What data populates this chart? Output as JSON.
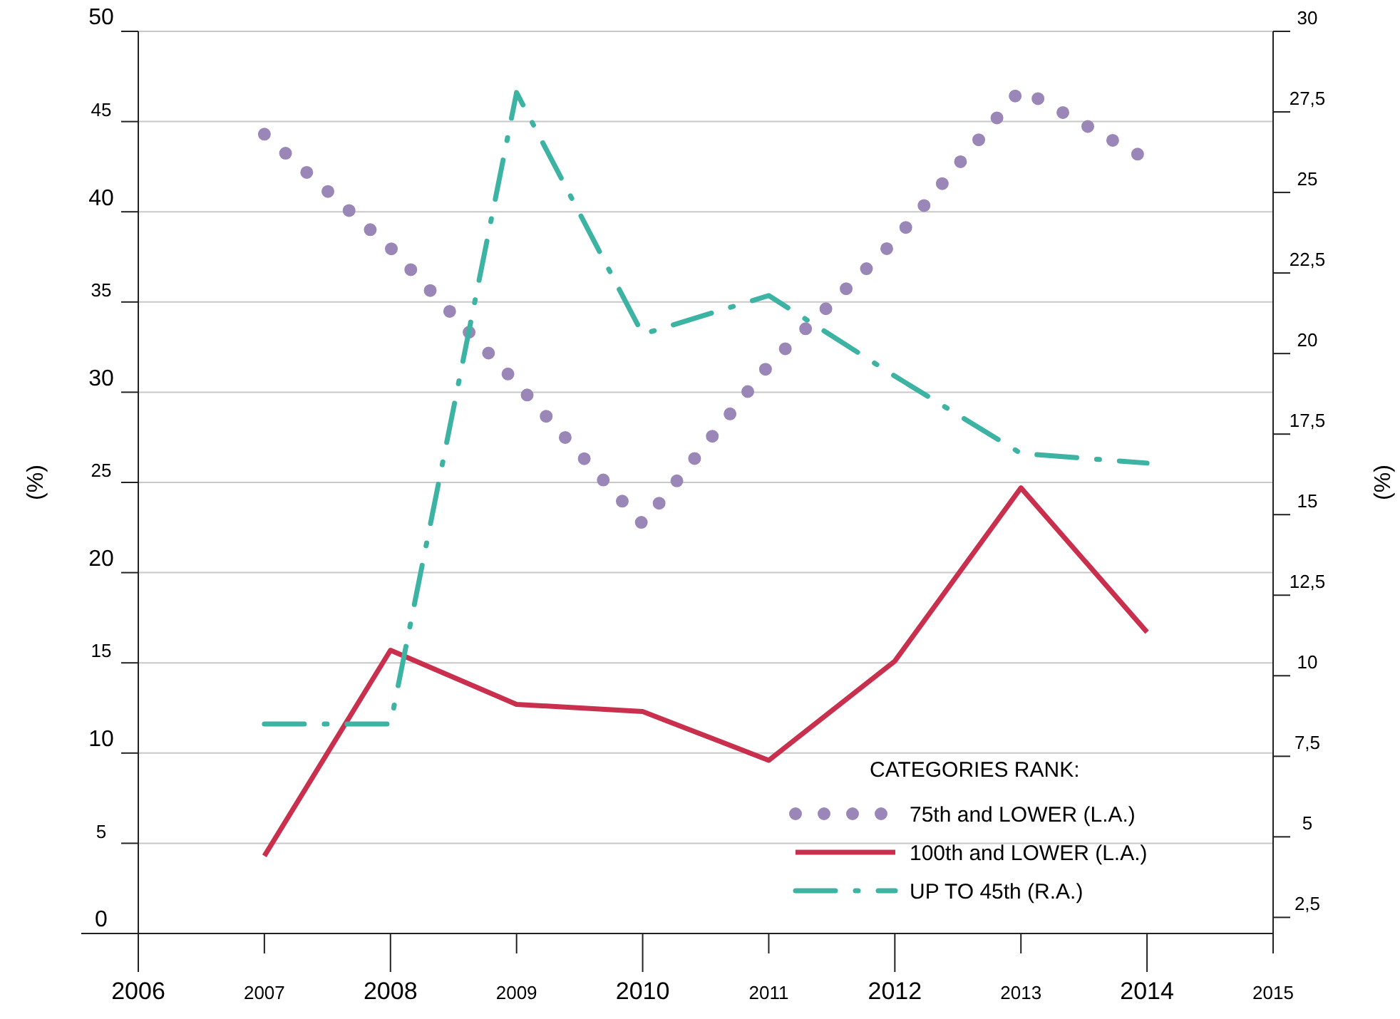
{
  "chart_data": {
    "type": "line",
    "x": [
      2007,
      2008,
      2009,
      2010,
      2011,
      2012,
      2013,
      2014
    ],
    "xlim": [
      2006,
      2015
    ],
    "xticks": [
      2006,
      2007,
      2008,
      2009,
      2010,
      2011,
      2012,
      2013,
      2014,
      2015
    ],
    "ylim": [
      0,
      50
    ],
    "yticks": [
      0,
      5,
      10,
      15,
      20,
      25,
      30,
      35,
      40,
      45,
      50
    ],
    "y2lim": [
      2,
      30
    ],
    "y2ticks": [
      {
        "value": 2.5,
        "label": "2,5"
      },
      5,
      {
        "value": 7.5,
        "label": "7,5"
      },
      10,
      {
        "value": 12.5,
        "label": "12,5"
      },
      15,
      {
        "value": 17.5,
        "label": "17,5"
      },
      20,
      {
        "value": 22.5,
        "label": "22,5"
      },
      25,
      {
        "value": 27.5,
        "label": "27,5"
      },
      30
    ],
    "ylabel": "(%)",
    "y2label": "(%)",
    "legend_title": "CATEGORIES RANK:",
    "legend": "bottom right",
    "grid": "y",
    "marker": "none",
    "series": [
      {
        "name": "75th and LOWER  (L.A.)",
        "color": "#9b86b8",
        "line_style": "dotted",
        "values": [
          44.3,
          38,
          30.5,
          22.7,
          31.5,
          38.4,
          46.8,
          42.9
        ]
      },
      {
        "name": "100th and LOWER (L.A.)",
        "color": "#c8304e",
        "line_style": "solid",
        "values": [
          4.3,
          15.7,
          12.7,
          12.3,
          9.6,
          15.1,
          24.7,
          16.7
        ]
      },
      {
        "name": "UP TO 45th (R.A.)",
        "color": "#3db3a3",
        "line_style": "dashed",
        "axis": "y2",
        "values": [
          8.5,
          8.5,
          28.1,
          20.6,
          21.8,
          19.3,
          16.9,
          16.6
        ]
      }
    ]
  }
}
